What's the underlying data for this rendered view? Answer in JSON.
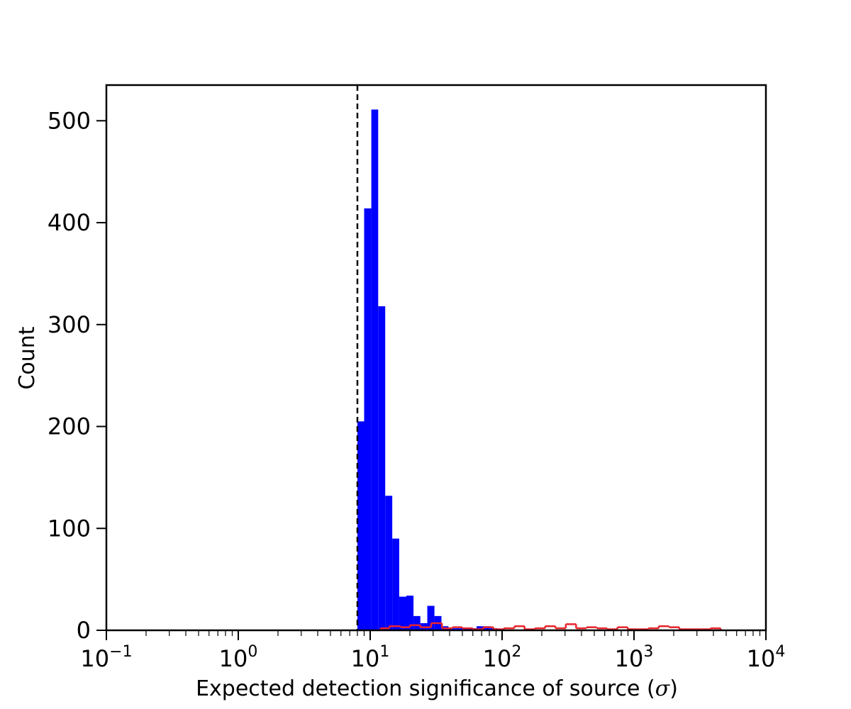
{
  "chart_data": {
    "type": "bar",
    "xlabel": "Expected detection significance of source (",
    "xlabel_symbol": "σ",
    "xlabel_suffix": ")",
    "ylabel": "Count",
    "x_scale": "log",
    "xlim": [
      0.1,
      10000
    ],
    "ylim": [
      0,
      535
    ],
    "x_ticks": [
      {
        "base": "10",
        "exp": "−1",
        "value": 0.1
      },
      {
        "base": "10",
        "exp": "0",
        "value": 1
      },
      {
        "base": "10",
        "exp": "1",
        "value": 10
      },
      {
        "base": "10",
        "exp": "2",
        "value": 100
      },
      {
        "base": "10",
        "exp": "3",
        "value": 1000
      },
      {
        "base": "10",
        "exp": "4",
        "value": 10000
      }
    ],
    "y_ticks": [
      "0",
      "100",
      "200",
      "300",
      "400",
      "500"
    ],
    "y_tick_values": [
      0,
      100,
      200,
      300,
      400,
      500
    ],
    "threshold_line": {
      "x": 8,
      "style": "dashed",
      "color": "#000000"
    },
    "grid": false,
    "series": [
      {
        "style": "filled",
        "color": "#0000ff",
        "bins": [
          {
            "x0": 8.0,
            "x1": 9.0,
            "count": 205
          },
          {
            "x0": 9.0,
            "x1": 10.2,
            "count": 414
          },
          {
            "x0": 10.2,
            "x1": 11.5,
            "count": 511
          },
          {
            "x0": 11.5,
            "x1": 13.0,
            "count": 318
          },
          {
            "x0": 13.0,
            "x1": 14.7,
            "count": 132
          },
          {
            "x0": 14.7,
            "x1": 16.6,
            "count": 90
          },
          {
            "x0": 16.6,
            "x1": 18.8,
            "count": 33
          },
          {
            "x0": 18.8,
            "x1": 21.3,
            "count": 34
          },
          {
            "x0": 21.3,
            "x1": 24.0,
            "count": 14
          },
          {
            "x0": 24.0,
            "x1": 27.1,
            "count": 7
          },
          {
            "x0": 27.1,
            "x1": 30.7,
            "count": 24
          },
          {
            "x0": 30.7,
            "x1": 34.7,
            "count": 14
          },
          {
            "x0": 34.7,
            "x1": 39.2,
            "count": 4
          },
          {
            "x0": 39.2,
            "x1": 44.3,
            "count": 2
          },
          {
            "x0": 44.3,
            "x1": 50.1,
            "count": 2
          },
          {
            "x0": 50.1,
            "x1": 56.7,
            "count": 2
          },
          {
            "x0": 56.7,
            "x1": 64.1,
            "count": 2
          },
          {
            "x0": 64.1,
            "x1": 72.4,
            "count": 4
          },
          {
            "x0": 72.4,
            "x1": 81.9,
            "count": 4
          },
          {
            "x0": 81.9,
            "x1": 92.6,
            "count": 2
          },
          {
            "x0": 92.6,
            "x1": 104.7,
            "count": 1
          }
        ]
      },
      {
        "style": "step",
        "color": "#e8242c",
        "bins": [
          {
            "x0": 12.0,
            "x1": 14.0,
            "count": 2
          },
          {
            "x0": 14.0,
            "x1": 17.0,
            "count": 4
          },
          {
            "x0": 17.0,
            "x1": 20.0,
            "count": 3
          },
          {
            "x0": 20.0,
            "x1": 24.0,
            "count": 5
          },
          {
            "x0": 24.0,
            "x1": 29.0,
            "count": 3
          },
          {
            "x0": 29.0,
            "x1": 35.0,
            "count": 7
          },
          {
            "x0": 35.0,
            "x1": 42.0,
            "count": 2
          },
          {
            "x0": 42.0,
            "x1": 50.0,
            "count": 3
          },
          {
            "x0": 50.0,
            "x1": 60.0,
            "count": 2
          },
          {
            "x0": 60.0,
            "x1": 72.0,
            "count": 1
          },
          {
            "x0": 72.0,
            "x1": 86.0,
            "count": 3
          },
          {
            "x0": 86.0,
            "x1": 103.0,
            "count": 1
          },
          {
            "x0": 103.0,
            "x1": 124.0,
            "count": 2
          },
          {
            "x0": 124.0,
            "x1": 148.0,
            "count": 4
          },
          {
            "x0": 148.0,
            "x1": 177.0,
            "count": 1
          },
          {
            "x0": 177.0,
            "x1": 212.0,
            "count": 2
          },
          {
            "x0": 212.0,
            "x1": 254.0,
            "count": 4
          },
          {
            "x0": 254.0,
            "x1": 304.0,
            "count": 2
          },
          {
            "x0": 304.0,
            "x1": 364.0,
            "count": 6
          },
          {
            "x0": 364.0,
            "x1": 436.0,
            "count": 2
          },
          {
            "x0": 436.0,
            "x1": 522.0,
            "count": 3
          },
          {
            "x0": 522.0,
            "x1": 625.0,
            "count": 2
          },
          {
            "x0": 625.0,
            "x1": 748.0,
            "count": 1
          },
          {
            "x0": 748.0,
            "x1": 896.0,
            "count": 3
          },
          {
            "x0": 896.0,
            "x1": 1073.0,
            "count": 1
          },
          {
            "x0": 1073.0,
            "x1": 1285.0,
            "count": 1
          },
          {
            "x0": 1285.0,
            "x1": 1539.0,
            "count": 2
          },
          {
            "x0": 1539.0,
            "x1": 1843.0,
            "count": 4
          },
          {
            "x0": 1843.0,
            "x1": 2207.0,
            "count": 3
          },
          {
            "x0": 2207.0,
            "x1": 2643.0,
            "count": 1
          },
          {
            "x0": 2643.0,
            "x1": 3165.0,
            "count": 1
          },
          {
            "x0": 3165.0,
            "x1": 3790.0,
            "count": 1
          },
          {
            "x0": 3790.0,
            "x1": 4539.0,
            "count": 2
          }
        ]
      }
    ]
  }
}
